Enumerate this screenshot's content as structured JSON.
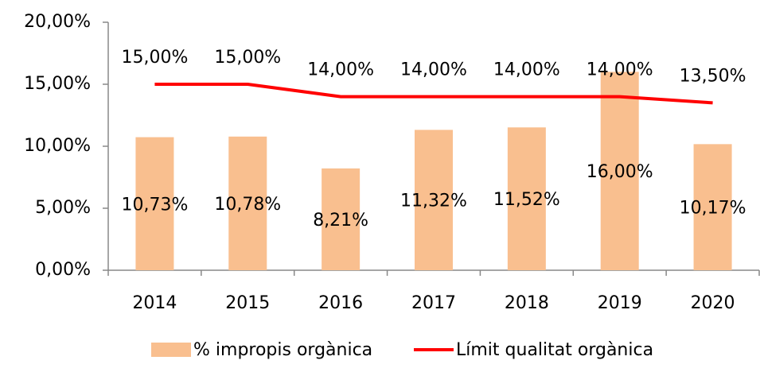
{
  "chart_data": {
    "type": "bar",
    "categories": [
      "2014",
      "2015",
      "2016",
      "2017",
      "2018",
      "2019",
      "2020"
    ],
    "series": [
      {
        "name": "% impropis orgànica",
        "type": "bar",
        "color": "#f9bf8f",
        "values": [
          10.73,
          10.78,
          8.21,
          11.32,
          11.52,
          16,
          10.17
        ],
        "value_labels": [
          "10,73%",
          "10,78%",
          "8,21%",
          "11,32%",
          "11,52%",
          "16,00%",
          "10,17%"
        ]
      },
      {
        "name": "Límit qualitat orgànica",
        "type": "line",
        "color": "#ff0000",
        "values": [
          15,
          15,
          14,
          14,
          14,
          14,
          13.5
        ],
        "value_labels": [
          "15,00%",
          "15,00%",
          "14,00%",
          "14,00%",
          "14,00%",
          "14,00%",
          "13,50%"
        ]
      }
    ],
    "ylim": [
      0,
      20
    ],
    "yticks": [
      {
        "value": 0,
        "label": "0,00%"
      },
      {
        "value": 5,
        "label": "5,00%"
      },
      {
        "value": 10,
        "label": "10,00%"
      },
      {
        "value": 15,
        "label": "15,00%"
      },
      {
        "value": 20,
        "label": "20,00%"
      }
    ],
    "grid": false,
    "legend": "bottom"
  }
}
